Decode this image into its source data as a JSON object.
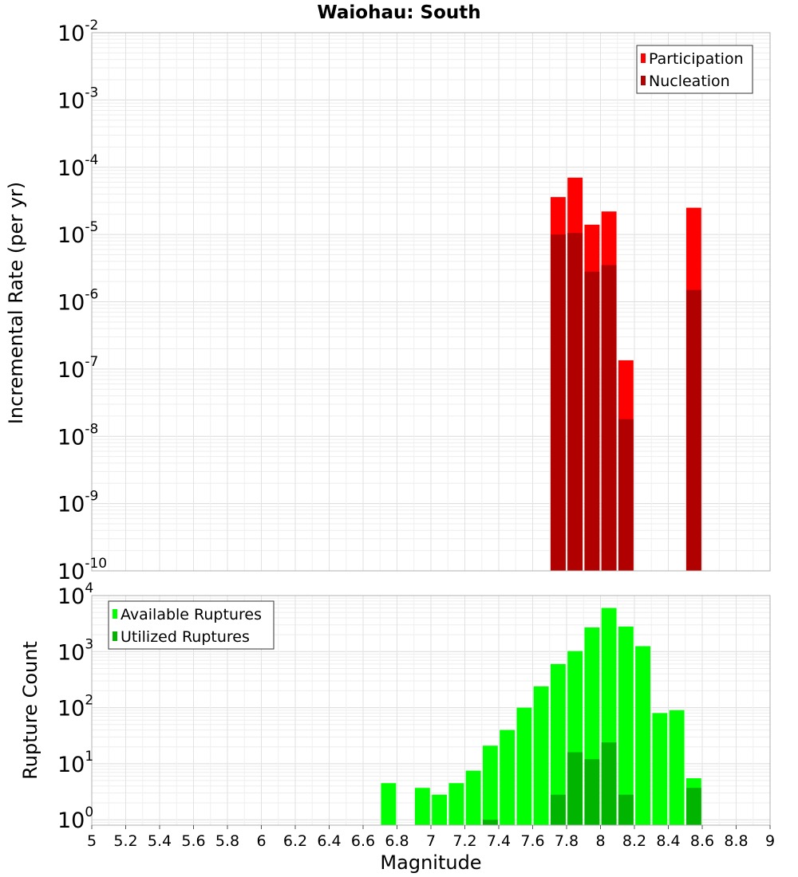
{
  "chart_data": [
    {
      "type": "bar",
      "title": "Waiohau: South",
      "xlabel": "",
      "ylabel": "Incremental Rate (per yr)",
      "yscale": "log",
      "xlim": [
        5,
        9
      ],
      "ylim": [
        1e-10,
        0.01
      ],
      "y_ticks": [
        {
          "base": "10",
          "exp": "-10",
          "value": 1e-10
        },
        {
          "base": "10",
          "exp": "-9",
          "value": 1e-09
        },
        {
          "base": "10",
          "exp": "-8",
          "value": 1e-08
        },
        {
          "base": "10",
          "exp": "-7",
          "value": 1e-07
        },
        {
          "base": "10",
          "exp": "-6",
          "value": 1e-06
        },
        {
          "base": "10",
          "exp": "-5",
          "value": 1e-05
        },
        {
          "base": "10",
          "exp": "-4",
          "value": 0.0001
        },
        {
          "base": "10",
          "exp": "-3",
          "value": 0.001
        },
        {
          "base": "10",
          "exp": "-2",
          "value": 0.01
        }
      ],
      "legend_position": "top-right",
      "grid": true,
      "bar_width": 0.1,
      "series": [
        {
          "name": "Participation",
          "color": "#ff0000",
          "x": [
            7.75,
            7.85,
            7.95,
            8.05,
            8.15,
            8.55
          ],
          "values": [
            3.6e-05,
            7e-05,
            1.4e-05,
            2.2e-05,
            1.35e-07,
            2.5e-05
          ]
        },
        {
          "name": "Nucleation",
          "color": "#b00000",
          "x": [
            7.75,
            7.85,
            7.95,
            8.05,
            8.15,
            8.55
          ],
          "values": [
            1e-05,
            1.05e-05,
            2.8e-06,
            3.5e-06,
            1.8e-08,
            1.5e-06
          ]
        }
      ]
    },
    {
      "type": "bar",
      "title": "",
      "xlabel": "Magnitude",
      "ylabel": "Rupture Count",
      "yscale": "log",
      "xlim": [
        5,
        9
      ],
      "ylim": [
        0.8,
        10000
      ],
      "x_ticks": [
        "5",
        "5.2",
        "5.4",
        "5.6",
        "5.8",
        "6",
        "6.2",
        "6.4",
        "6.6",
        "6.8",
        "7",
        "7.2",
        "7.4",
        "7.6",
        "7.8",
        "8",
        "8.2",
        "8.4",
        "8.6",
        "8.8",
        "9"
      ],
      "y_ticks": [
        {
          "base": "10",
          "exp": "0",
          "value": 1
        },
        {
          "base": "10",
          "exp": "1",
          "value": 10
        },
        {
          "base": "10",
          "exp": "2",
          "value": 100
        },
        {
          "base": "10",
          "exp": "3",
          "value": 1000
        },
        {
          "base": "10",
          "exp": "4",
          "value": 10000
        }
      ],
      "legend_position": "top-left",
      "grid": true,
      "bar_width": 0.1,
      "series": [
        {
          "name": "Available Ruptures",
          "color": "#00ff00",
          "x": [
            6.75,
            6.95,
            7.05,
            7.15,
            7.25,
            7.35,
            7.45,
            7.55,
            7.65,
            7.75,
            7.85,
            7.95,
            8.05,
            8.15,
            8.25,
            8.35,
            8.45,
            8.55
          ],
          "values": [
            4.5,
            3.7,
            2.8,
            4.5,
            7.5,
            21,
            40,
            100,
            240,
            600,
            1020,
            2700,
            6000,
            2800,
            1250,
            80,
            90,
            5.5
          ]
        },
        {
          "name": "Utilized Ruptures",
          "color": "#00b400",
          "x": [
            7.35,
            7.75,
            7.85,
            7.95,
            8.05,
            8.15,
            8.55
          ],
          "values": [
            1,
            2.8,
            16,
            12,
            24,
            2.8,
            3.7
          ]
        }
      ]
    }
  ]
}
